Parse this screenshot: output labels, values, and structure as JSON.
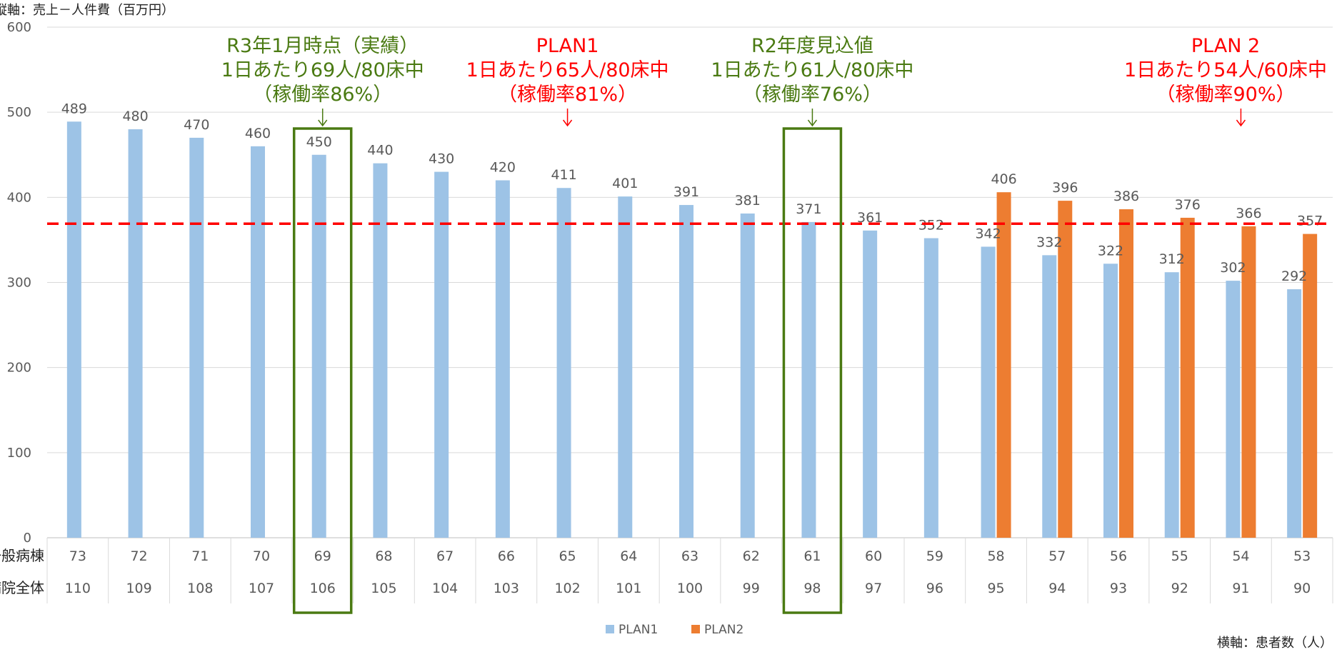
{
  "chart_data": {
    "type": "bar",
    "ylabel": "縦軸：売上－人件費（百万円）",
    "xlabel": "横軸：患者数（人）",
    "ylim": [
      0,
      600
    ],
    "yticks": [
      0,
      100,
      200,
      300,
      400,
      500,
      600
    ],
    "grid": true,
    "legend_position": "bottom",
    "categories": [
      "73",
      "72",
      "71",
      "70",
      "69",
      "68",
      "67",
      "66",
      "65",
      "64",
      "63",
      "62",
      "61",
      "60",
      "59",
      "58",
      "57",
      "56",
      "55",
      "54",
      "53"
    ],
    "row_labels": [
      {
        "label": "一般病棟",
        "values": [
          "73",
          "72",
          "71",
          "70",
          "69",
          "68",
          "67",
          "66",
          "65",
          "64",
          "63",
          "62",
          "61",
          "60",
          "59",
          "58",
          "57",
          "56",
          "55",
          "54",
          "53"
        ]
      },
      {
        "label": "病院全体",
        "values": [
          "110",
          "109",
          "108",
          "107",
          "106",
          "105",
          "104",
          "103",
          "102",
          "101",
          "100",
          "99",
          "98",
          "97",
          "96",
          "95",
          "94",
          "93",
          "92",
          "91",
          "90"
        ]
      }
    ],
    "series": [
      {
        "name": "PLAN1",
        "color": "#9DC3E6",
        "values": [
          489,
          480,
          470,
          460,
          450,
          440,
          430,
          420,
          411,
          401,
          391,
          381,
          371,
          361,
          352,
          342,
          332,
          322,
          312,
          302,
          292
        ]
      },
      {
        "name": "PLAN2",
        "color": "#ED7D31",
        "values": [
          null,
          null,
          null,
          null,
          null,
          null,
          null,
          null,
          null,
          null,
          null,
          null,
          null,
          null,
          null,
          406,
          396,
          386,
          376,
          366,
          357
        ]
      }
    ],
    "reference_line": {
      "value": 369,
      "color": "#FF0000",
      "style": "dashed"
    },
    "highlight_boxes": [
      {
        "category_index": 4,
        "color": "#4A7A12"
      },
      {
        "category_index": 12,
        "color": "#4A7A12"
      }
    ],
    "annotations": [
      {
        "category_index": 4,
        "color": "#4A7A12",
        "lines": [
          "R3年1月時点（実績）",
          "1日あたり69人/80床中",
          "（稼働率86%）"
        ]
      },
      {
        "category_index": 8,
        "color": "#FF0000",
        "lines": [
          "PLAN1",
          "1日あたり65人/80床中",
          "（稼働率81%）"
        ]
      },
      {
        "category_index": 12,
        "color": "#4A7A12",
        "lines": [
          "R2年度見込値",
          "1日あたり61人/80床中",
          "（稼働率76%）"
        ]
      },
      {
        "category_index": 19,
        "color": "#FF0000",
        "lines": [
          "PLAN 2",
          "1日あたり54人/60床中",
          "（稼働率90%）"
        ]
      }
    ]
  }
}
